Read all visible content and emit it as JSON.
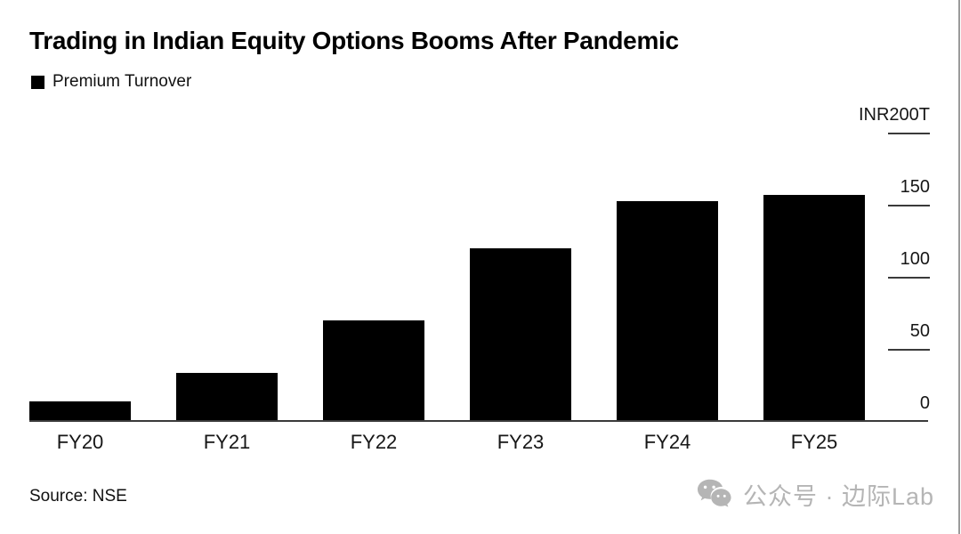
{
  "title": "Trading in Indian Equity Options Booms After Pandemic",
  "legend": {
    "label": "Premium Turnover",
    "swatch_color": "#000000"
  },
  "source": "Source: NSE",
  "watermark": {
    "text": "公众号 · 边际Lab",
    "icon": "wechat-icon",
    "color": "#b5b5b5"
  },
  "chart_data": {
    "type": "bar",
    "title": "Trading in Indian Equity Options Booms After Pandemic",
    "series_name": "Premium Turnover",
    "categories": [
      "FY20",
      "FY21",
      "FY22",
      "FY23",
      "FY24",
      "FY25"
    ],
    "values": [
      13,
      33,
      69,
      119,
      152,
      156
    ],
    "unit": "INR trillion",
    "ylim": [
      0,
      200
    ],
    "yticks": [
      0,
      50,
      100,
      150,
      200
    ],
    "ytick_labels": [
      "0",
      "50",
      "100",
      "150",
      "INR200T"
    ],
    "axis_side": "right",
    "grid": false,
    "legend_position": "top-left",
    "bar_color": "#000000"
  }
}
